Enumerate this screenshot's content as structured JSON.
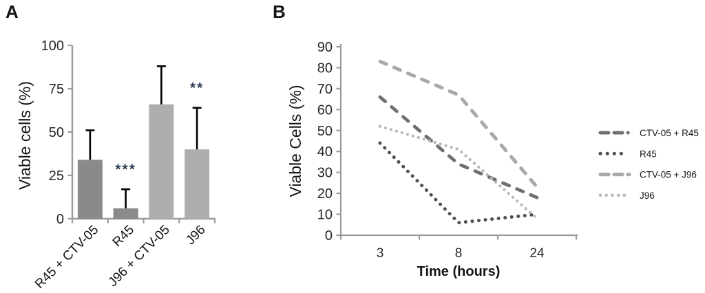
{
  "panels": {
    "a_label": "A",
    "b_label": "B"
  },
  "colors": {
    "axis": "#9a9a9a",
    "tick_text": "#262626",
    "error_bar": "#000000",
    "significance": "#2e3c55",
    "bar_dark": "#8a8a8a",
    "bar_light": "#aeaeae"
  },
  "chart_data": [
    {
      "panel": "A",
      "type": "bar",
      "ylabel": "Viable cells (%)",
      "xlabel": "",
      "ylim": [
        0,
        100
      ],
      "yticks": [
        0,
        25,
        50,
        75,
        100
      ],
      "grid": false,
      "categories": [
        "R45 + CTV-05",
        "R45",
        "J96 + CTV-05",
        "J96"
      ],
      "values": [
        34,
        6,
        66,
        40
      ],
      "error_up": [
        17,
        11,
        22,
        24
      ],
      "significance": [
        "",
        "***",
        "",
        "**"
      ],
      "bar_colors": [
        "#8a8a8a",
        "#8a8a8a",
        "#aeaeae",
        "#aeaeae"
      ]
    },
    {
      "panel": "B",
      "type": "line",
      "ylabel": "Viable Cells (%)",
      "xlabel": "Time (hours)",
      "ylim": [
        0,
        90
      ],
      "yticks": [
        0,
        10,
        20,
        30,
        40,
        50,
        60,
        70,
        80,
        90
      ],
      "grid": false,
      "legend_position": "right",
      "x_categories": [
        "3",
        "8",
        "24"
      ],
      "series": [
        {
          "name": "CTV-05 + R45",
          "values": [
            66,
            34,
            18
          ],
          "color": "#6f6f6f",
          "style": "dash",
          "width": 4.8
        },
        {
          "name": "R45",
          "values": [
            44,
            6,
            10
          ],
          "color": "#505050",
          "style": "dot",
          "width": 5
        },
        {
          "name": "CTV-05 + J96",
          "values": [
            83,
            67,
            23
          ],
          "color": "#a9a9a9",
          "style": "dash",
          "width": 5
        },
        {
          "name": "J96",
          "values": [
            52,
            41,
            8
          ],
          "color": "#b8b8b8",
          "style": "dot",
          "width": 4.3
        }
      ]
    }
  ]
}
